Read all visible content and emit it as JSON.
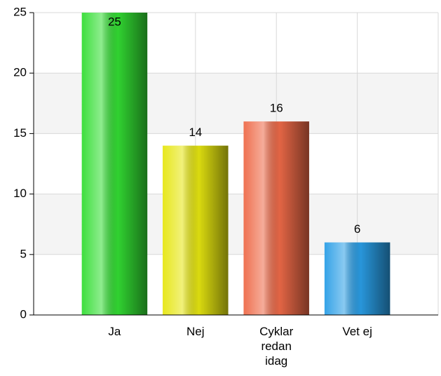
{
  "chart_data": {
    "type": "bar",
    "categories": [
      "Ja",
      "Nej",
      "Cyklar redan idag",
      "Vet ej"
    ],
    "values": [
      25,
      14,
      16,
      6
    ],
    "colors": [
      "#33dd33",
      "#e6e610",
      "#ee6a48",
      "#2a9ee6"
    ],
    "ylim": [
      0,
      25
    ],
    "yticks": [
      0,
      5,
      10,
      15,
      20,
      25
    ],
    "grid": true
  }
}
